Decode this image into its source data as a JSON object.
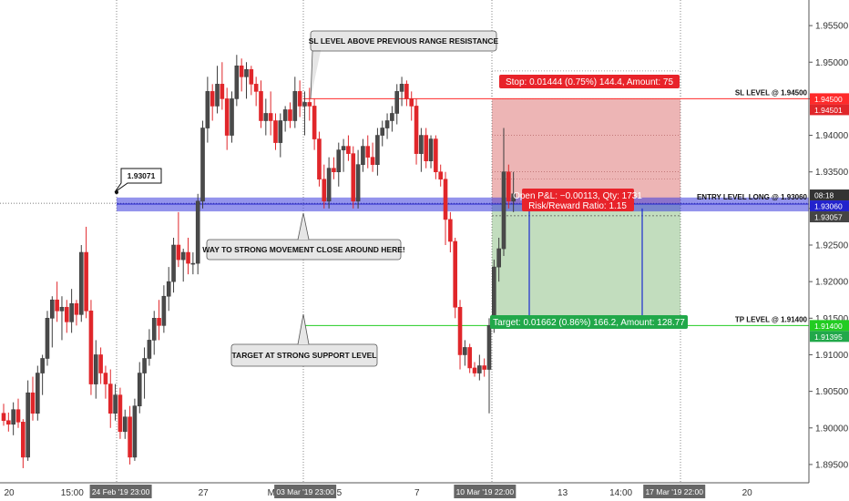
{
  "chart_data": {
    "type": "candlestick",
    "symbol_pair_hint": "",
    "y_range": [
      1.8925,
      1.9585
    ],
    "y_ticks": [
      "1.95500",
      "1.95000",
      "1.94500",
      "1.94000",
      "1.93500",
      "1.93000",
      "1.92500",
      "1.92000",
      "1.91500",
      "1.91000",
      "1.90500",
      "1.90000",
      "1.89500"
    ],
    "y_tick_values": [
      1.955,
      1.95,
      1.945,
      1.94,
      1.935,
      1.93,
      1.925,
      1.92,
      1.915,
      1.91,
      1.905,
      1.9,
      1.895
    ],
    "x_ticks": [
      {
        "label": "20",
        "bar": 0
      },
      {
        "label": "15:00",
        "bar": 13
      },
      {
        "label": "27",
        "bar": 40
      },
      {
        "label": "M",
        "bar": 54
      },
      {
        "label": "5",
        "bar": 68
      },
      {
        "label": "7",
        "bar": 84
      },
      {
        "label": "13",
        "bar": 114
      },
      {
        "label": "14:00",
        "bar": 126
      },
      {
        "label": "20",
        "bar": 152
      }
    ],
    "x_highlight_labels": [
      {
        "label": "24 Feb '19   23:00",
        "bar": 23
      },
      {
        "label": "03 Mar '19   23:00",
        "bar": 61
      },
      {
        "label": "10 Mar '19   22:00",
        "bar": 98
      },
      {
        "label": "17 Mar '19   22:00",
        "bar": 137
      }
    ],
    "candles": [
      [
        1.902,
        1.9033,
        1.9003,
        1.901
      ],
      [
        1.901,
        1.9021,
        1.8995,
        1.9005
      ],
      [
        1.9005,
        1.9035,
        1.899,
        1.9025
      ],
      [
        1.9025,
        1.904,
        1.9,
        1.9008
      ],
      [
        1.9008,
        1.9012,
        1.8945,
        1.896
      ],
      [
        1.896,
        1.9065,
        1.8955,
        1.9048
      ],
      [
        1.9048,
        1.907,
        1.901,
        1.902
      ],
      [
        1.902,
        1.9085,
        1.901,
        1.9075
      ],
      [
        1.9075,
        1.91,
        1.9045,
        1.9095
      ],
      [
        1.9095,
        1.916,
        1.9085,
        1.915
      ],
      [
        1.915,
        1.918,
        1.911,
        1.9175
      ],
      [
        1.9175,
        1.92,
        1.9145,
        1.916
      ],
      [
        1.916,
        1.918,
        1.912,
        1.9165
      ],
      [
        1.9165,
        1.9175,
        1.913,
        1.9145
      ],
      [
        1.9145,
        1.919,
        1.913,
        1.917
      ],
      [
        1.917,
        1.9175,
        1.914,
        1.9155
      ],
      [
        1.9155,
        1.925,
        1.9145,
        1.924
      ],
      [
        1.924,
        1.9275,
        1.915,
        1.916
      ],
      [
        1.916,
        1.9175,
        1.9045,
        1.906
      ],
      [
        1.906,
        1.912,
        1.904,
        1.91
      ],
      [
        1.91,
        1.911,
        1.906,
        1.9075
      ],
      [
        1.9075,
        1.9085,
        1.904,
        1.906
      ],
      [
        1.906,
        1.908,
        1.9,
        1.902
      ],
      [
        1.902,
        1.906,
        1.901,
        1.9045
      ],
      [
        1.9045,
        1.9055,
        1.8985,
        1.8995
      ],
      [
        1.8995,
        1.9025,
        1.8985,
        1.9015
      ],
      [
        1.9015,
        1.903,
        1.895,
        1.896
      ],
      [
        1.896,
        1.904,
        1.8955,
        1.903
      ],
      [
        1.903,
        1.909,
        1.902,
        1.9075
      ],
      [
        1.9075,
        1.911,
        1.904,
        1.9095
      ],
      [
        1.9095,
        1.9135,
        1.9085,
        1.912
      ],
      [
        1.912,
        1.916,
        1.91,
        1.915
      ],
      [
        1.915,
        1.9175,
        1.912,
        1.914
      ],
      [
        1.914,
        1.9195,
        1.913,
        1.918
      ],
      [
        1.918,
        1.922,
        1.916,
        1.92
      ],
      [
        1.92,
        1.926,
        1.9185,
        1.925
      ],
      [
        1.925,
        1.9295,
        1.922,
        1.923
      ],
      [
        1.923,
        1.9245,
        1.92,
        1.924
      ],
      [
        1.924,
        1.926,
        1.921,
        1.9225
      ],
      [
        1.9225,
        1.924,
        1.921,
        1.9225
      ],
      [
        1.9225,
        1.932,
        1.921,
        1.931
      ],
      [
        1.931,
        1.942,
        1.93,
        1.941
      ],
      [
        1.941,
        1.948,
        1.939,
        1.946
      ],
      [
        1.946,
        1.947,
        1.942,
        1.944
      ],
      [
        1.944,
        1.9495,
        1.943,
        1.947
      ],
      [
        1.947,
        1.95,
        1.9435,
        1.945
      ],
      [
        1.945,
        1.9465,
        1.938,
        1.94
      ],
      [
        1.94,
        1.946,
        1.939,
        1.945
      ],
      [
        1.945,
        1.951,
        1.944,
        1.9495
      ],
      [
        1.9495,
        1.9505,
        1.946,
        1.948
      ],
      [
        1.948,
        1.95,
        1.945,
        1.949
      ],
      [
        1.949,
        1.9495,
        1.9455,
        1.947
      ],
      [
        1.947,
        1.948,
        1.944,
        1.946
      ],
      [
        1.946,
        1.9475,
        1.941,
        1.942
      ],
      [
        1.942,
        1.945,
        1.94,
        1.943
      ],
      [
        1.943,
        1.946,
        1.94,
        1.942
      ],
      [
        1.942,
        1.943,
        1.938,
        1.939
      ],
      [
        1.939,
        1.943,
        1.937,
        1.942
      ],
      [
        1.942,
        1.944,
        1.9405,
        1.9435
      ],
      [
        1.9435,
        1.9445,
        1.941,
        1.942
      ],
      [
        1.942,
        1.948,
        1.941,
        1.946
      ],
      [
        1.946,
        1.9475,
        1.9425,
        1.944
      ],
      [
        1.944,
        1.946,
        1.94,
        1.9445
      ],
      [
        1.9445,
        1.9465,
        1.942,
        1.944
      ],
      [
        1.944,
        1.945,
        1.938,
        1.9395
      ],
      [
        1.9395,
        1.9405,
        1.933,
        1.934
      ],
      [
        1.934,
        1.936,
        1.93,
        1.931
      ],
      [
        1.931,
        1.937,
        1.93,
        1.9355
      ],
      [
        1.9355,
        1.937,
        1.934,
        1.935
      ],
      [
        1.935,
        1.939,
        1.933,
        1.938
      ],
      [
        1.938,
        1.9395,
        1.935,
        1.9385
      ],
      [
        1.9385,
        1.94,
        1.9365,
        1.9375
      ],
      [
        1.9375,
        1.9385,
        1.93,
        1.931
      ],
      [
        1.931,
        1.938,
        1.93,
        1.936
      ],
      [
        1.936,
        1.9395,
        1.935,
        1.9385
      ],
      [
        1.9385,
        1.94,
        1.9355,
        1.937
      ],
      [
        1.937,
        1.939,
        1.935,
        1.936
      ],
      [
        1.936,
        1.941,
        1.9345,
        1.94
      ],
      [
        1.94,
        1.942,
        1.9385,
        1.941
      ],
      [
        1.941,
        1.943,
        1.9395,
        1.942
      ],
      [
        1.942,
        1.944,
        1.9405,
        1.943
      ],
      [
        1.943,
        1.947,
        1.9415,
        1.946
      ],
      [
        1.946,
        1.948,
        1.944,
        1.947
      ],
      [
        1.947,
        1.9475,
        1.944,
        1.945
      ],
      [
        1.945,
        1.946,
        1.942,
        1.944
      ],
      [
        1.944,
        1.945,
        1.936,
        1.9375
      ],
      [
        1.9375,
        1.941,
        1.935,
        1.94
      ],
      [
        1.94,
        1.941,
        1.9355,
        1.9365
      ],
      [
        1.9365,
        1.94,
        1.9355,
        1.9395
      ],
      [
        1.9395,
        1.94,
        1.934,
        1.935
      ],
      [
        1.935,
        1.936,
        1.933,
        1.934
      ],
      [
        1.934,
        1.935,
        1.925,
        1.9285
      ],
      [
        1.9285,
        1.9295,
        1.924,
        1.9255
      ],
      [
        1.9255,
        1.926,
        1.915,
        1.9165
      ],
      [
        1.9165,
        1.9175,
        1.908,
        1.91
      ],
      [
        1.91,
        1.912,
        1.9085,
        1.911
      ],
      [
        1.911,
        1.9115,
        1.9075,
        1.9082
      ],
      [
        1.9082,
        1.909,
        1.907,
        1.9075
      ],
      [
        1.9075,
        1.91,
        1.9065,
        1.9085
      ],
      [
        1.9085,
        1.9095,
        1.907,
        1.908
      ],
      [
        1.908,
        1.915,
        1.902,
        1.914
      ],
      [
        1.914,
        1.923,
        1.913,
        1.922
      ],
      [
        1.922,
        1.926,
        1.92,
        1.9245
      ],
      [
        1.9245,
        1.941,
        1.9235,
        1.935
      ],
      [
        1.935,
        1.936,
        1.93,
        1.931
      ],
      [
        1.931,
        1.935,
        1.9295,
        1.932
      ]
    ],
    "levels": [
      {
        "name": "SL LEVEL @ 1.94500",
        "value": 1.945,
        "color": "#ff2a2a"
      },
      {
        "name": "ENTRY LEVEL LONG @ 1.93060",
        "value": 1.9306,
        "color": "#3a3ad8"
      },
      {
        "name": "TP LEVEL @ 1.91400",
        "value": 1.914,
        "color": "#22cc22"
      }
    ],
    "grid": false
  },
  "annotations": {
    "sl_note": "SL LEVEL ABOVE PREVIOUS RANGE RESISTANCE",
    "movement_note": "WAY TO STRONG MOVEMENT CLOSE AROUND HERE!",
    "target_note": "TARGET AT STRONG SUPPORT LEVEL",
    "price_callout": "1.93071",
    "stop_box": "Stop: 0.01444 (0.75%) 144.4, Amount: 75",
    "target_box": "Target: 0.01662 (0.86%) 166.2, Amount: 128.77",
    "pnl_box_line1": "Open P&L: −0.00113, Qty: 1731",
    "pnl_box_line2": "Risk/Reward Ratio: 1.15"
  },
  "axis_tags": {
    "sl": "1.94500",
    "sl_sub": "1.94501",
    "countdown": "08:18",
    "entry": "1.93060",
    "current": "1.93057",
    "tp": "1.91400",
    "tp_sub": "1.91395"
  },
  "colors": {
    "bull": "#3d3d3d",
    "bear": "#e0262a",
    "stop_zone": "rgba(214,90,90,0.45)",
    "target_zone": "rgba(120,180,110,0.45)",
    "entry_band": "rgba(60,60,220,0.55)"
  }
}
